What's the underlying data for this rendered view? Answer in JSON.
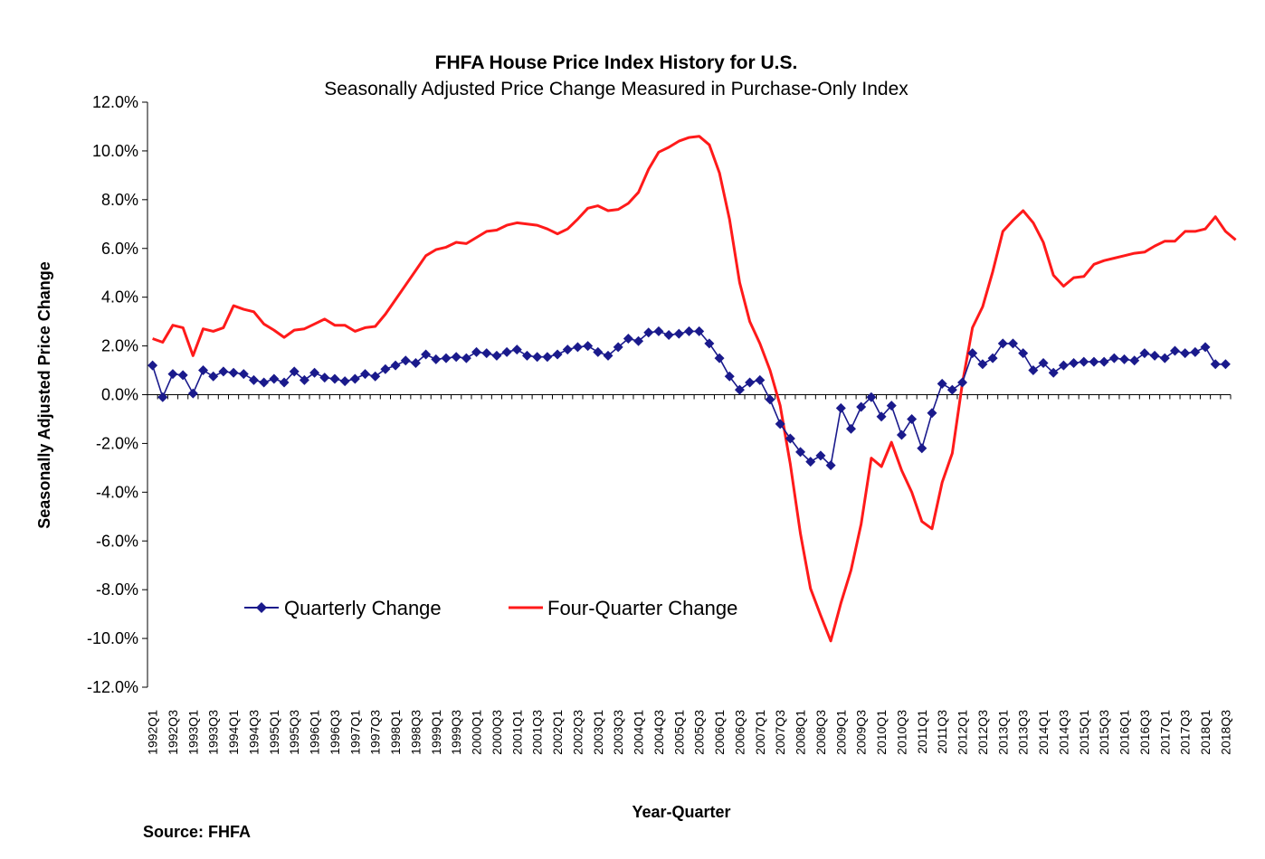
{
  "chart_data": {
    "type": "line",
    "title": "FHFA House Price Index History for U.S.",
    "subtitle": "Seasonally Adjusted Price Change Measured in Purchase-Only Index",
    "xlabel": "Year-Quarter",
    "ylabel": "Seasonally Adjusted Price Change",
    "source": "Source:  FHFA",
    "ylim": [
      -12,
      12
    ],
    "yticks": [
      12,
      10,
      8,
      6,
      4,
      2,
      0,
      -2,
      -4,
      -6,
      -8,
      -10,
      -12
    ],
    "ytick_labels": [
      "12.0%",
      "10.0%",
      "8.0%",
      "6.0%",
      "4.0%",
      "2.0%",
      "0.0%",
      "-2.0%",
      "-4.0%",
      "-6.0%",
      "-8.0%",
      "-10.0%",
      "-12.0%"
    ],
    "x_start": "1992Q1",
    "x_end": "2018Q3",
    "xtick_labels": [
      "1992Q1",
      "1992Q3",
      "1993Q1",
      "1993Q3",
      "1994Q1",
      "1994Q3",
      "1995Q1",
      "1995Q3",
      "1996Q1",
      "1996Q3",
      "1997Q1",
      "1997Q3",
      "1998Q1",
      "1998Q3",
      "1999Q1",
      "1999Q3",
      "2000Q1",
      "2000Q3",
      "2001Q1",
      "2001Q3",
      "2002Q1",
      "2002Q3",
      "2003Q1",
      "2003Q3",
      "2004Q1",
      "2004Q3",
      "2005Q1",
      "2005Q3",
      "2006Q1",
      "2006Q3",
      "2007Q1",
      "2007Q3",
      "2008Q1",
      "2008Q3",
      "2009Q1",
      "2009Q3",
      "2010Q1",
      "2010Q3",
      "2011Q1",
      "2011Q3",
      "2012Q1",
      "2012Q3",
      "2013Q1",
      "2013Q3",
      "2014Q1",
      "2014Q3",
      "2015Q1",
      "2015Q3",
      "2016Q1",
      "2016Q3",
      "2017Q1",
      "2017Q3",
      "2018Q1",
      "2018Q3"
    ],
    "legend": "inside-lower-left",
    "series": [
      {
        "name": "Quarterly Change",
        "color": "#1a1a8c",
        "marker": "diamond",
        "values": [
          1.2,
          -0.1,
          0.85,
          0.8,
          0.05,
          1.0,
          0.75,
          0.95,
          0.9,
          0.85,
          0.6,
          0.5,
          0.65,
          0.5,
          0.95,
          0.6,
          0.9,
          0.7,
          0.65,
          0.55,
          0.65,
          0.85,
          0.75,
          1.05,
          1.2,
          1.4,
          1.3,
          1.65,
          1.45,
          1.5,
          1.55,
          1.5,
          1.75,
          1.7,
          1.6,
          1.75,
          1.85,
          1.6,
          1.55,
          1.55,
          1.65,
          1.85,
          1.95,
          2.0,
          1.75,
          1.6,
          1.95,
          2.3,
          2.2,
          2.55,
          2.6,
          2.45,
          2.5,
          2.6,
          2.6,
          2.1,
          1.5,
          0.75,
          0.2,
          0.5,
          0.6,
          -0.2,
          -1.2,
          -1.8,
          -2.35,
          -2.75,
          -2.5,
          -2.9,
          -0.55,
          -1.4,
          -0.5,
          -0.1,
          -0.9,
          -0.45,
          -1.65,
          -1.0,
          -2.2,
          -0.75,
          0.45,
          0.2,
          0.5,
          1.7,
          1.25,
          1.5,
          2.1,
          2.1,
          1.7,
          1.0,
          1.3,
          0.9,
          1.2,
          1.3,
          1.35,
          1.35,
          1.35,
          1.5,
          1.45,
          1.4,
          1.7,
          1.6,
          1.5,
          1.8,
          1.7,
          1.75,
          1.95,
          1.25,
          1.25
        ]
      },
      {
        "name": "Four-Quarter Change",
        "color": "#ff1a1a",
        "values": [
          2.3,
          2.15,
          2.85,
          2.75,
          1.6,
          2.7,
          2.6,
          2.75,
          3.65,
          3.5,
          3.4,
          2.9,
          2.65,
          2.35,
          2.65,
          2.7,
          2.9,
          3.1,
          2.85,
          2.85,
          2.6,
          2.75,
          2.8,
          3.3,
          3.9,
          4.5,
          5.1,
          5.7,
          5.95,
          6.05,
          6.25,
          6.2,
          6.45,
          6.7,
          6.75,
          6.95,
          7.05,
          7.0,
          6.95,
          6.8,
          6.6,
          6.8,
          7.2,
          7.65,
          7.75,
          7.55,
          7.6,
          7.85,
          8.3,
          9.25,
          9.95,
          10.15,
          10.4,
          10.55,
          10.6,
          10.25,
          9.1,
          7.2,
          4.6,
          3.0,
          2.1,
          1.0,
          -0.45,
          -2.85,
          -5.7,
          -7.95,
          -9.05,
          -10.1,
          -8.55,
          -7.2,
          -5.3,
          -2.6,
          -2.95,
          -1.95,
          -3.1,
          -4.0,
          -5.2,
          -5.5,
          -3.6,
          -2.4,
          0.45,
          2.75,
          3.6,
          5.05,
          6.7,
          7.15,
          7.55,
          7.05,
          6.25,
          4.9,
          4.45,
          4.8,
          4.85,
          5.35,
          5.5,
          5.6,
          5.7,
          5.8,
          5.85,
          6.1,
          6.3,
          6.3,
          6.7,
          6.7,
          6.8,
          7.3,
          6.7,
          6.35
        ]
      }
    ]
  }
}
